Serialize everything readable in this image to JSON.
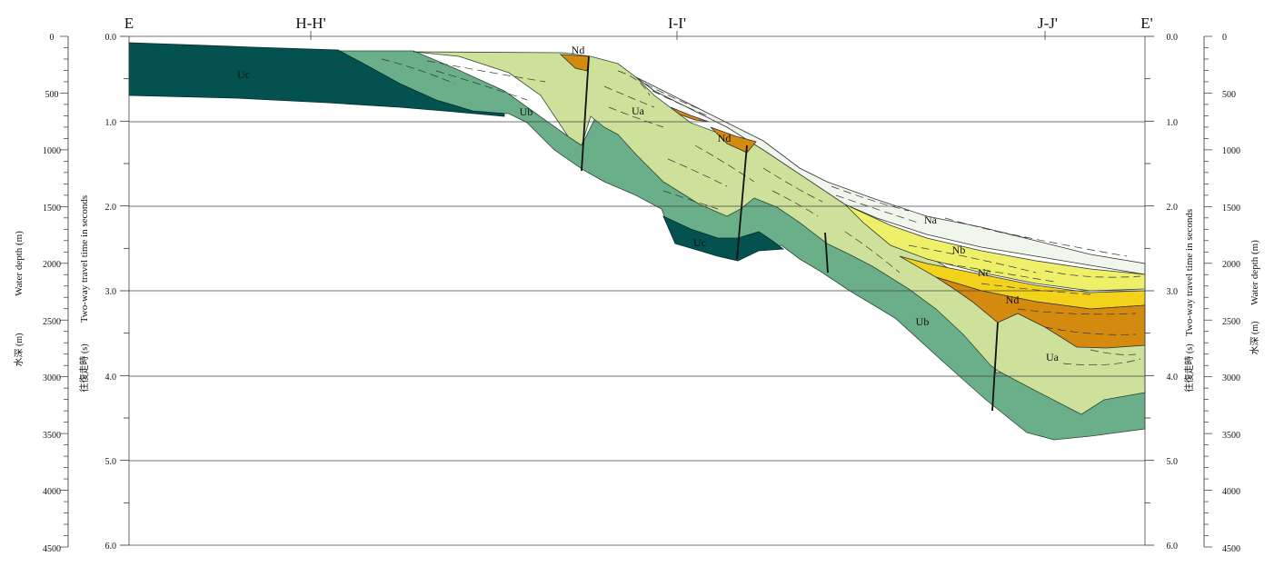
{
  "section_labels": {
    "start": "E",
    "cross_1": "H-H'",
    "cross_2": "I-I'",
    "cross_3": "J-J'",
    "end": "E'"
  },
  "left_axis": {
    "depth_title": "Water depth (m)",
    "depth_title_jp": "水深 (m)",
    "twt_title": "Two-way travel time in seconds",
    "twt_title_jp": "往復走時 (s)"
  },
  "right_axis": {
    "depth_title": "Water depth (m)",
    "depth_title_jp": "水深 (m)",
    "twt_title": "Two-way travel time in seconds",
    "twt_title_jp": "往復走時 (s)"
  },
  "depth_ticks": [
    "0",
    "500",
    "1000",
    "1500",
    "2000",
    "2500",
    "3000",
    "3500",
    "4000",
    "4500"
  ],
  "twt_ticks": [
    "0.0",
    "1.0",
    "2.0",
    "3.0",
    "4.0",
    "5.0",
    "6.0"
  ],
  "units": {
    "uc_1": "Uc",
    "uc_2": "Uc",
    "ub_1": "Ub",
    "ub_2": "Ub",
    "ua_1": "Ua",
    "ua_2": "Ua",
    "nd_1": "Nd",
    "nd_2": "Nd",
    "nd_3": "Nd",
    "na": "Na",
    "nb": "Nb",
    "nc": "Nc"
  },
  "colors": {
    "Uc": "#03524f",
    "Ub": "#6aae8a",
    "Ua": "#cde19a",
    "Nd": "#d4890f",
    "Nc": "#f2d21b",
    "Nb": "#edf068",
    "Na": "#f0f6ec"
  }
}
